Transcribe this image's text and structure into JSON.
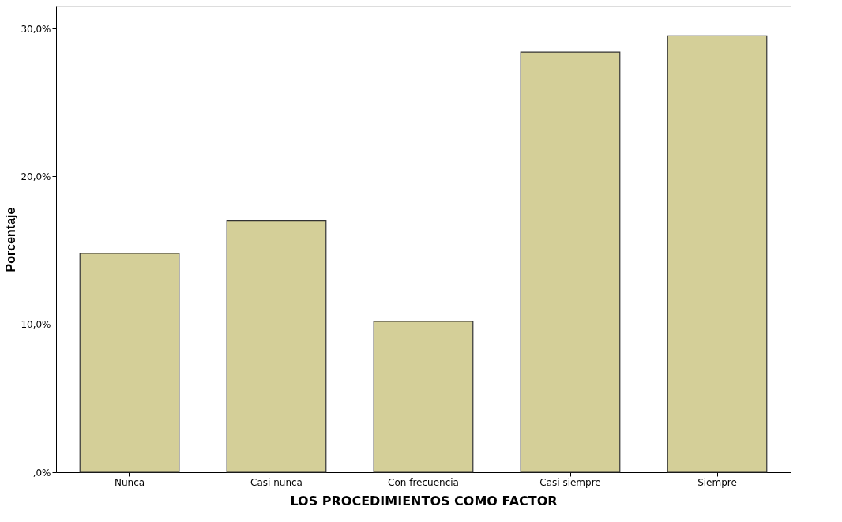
{
  "chart_data": {
    "type": "bar",
    "xlabel": "LOS PROCEDIMIENTOS COMO FACTOR",
    "ylabel": "Porcentaje",
    "categories": [
      "Nunca",
      "Casi nunca",
      "Con frecuencia",
      "Casi siempre",
      "Siempre"
    ],
    "values": [
      14.8,
      17.0,
      10.2,
      28.4,
      29.5
    ],
    "color": "#d4cf98",
    "ylim": [
      0,
      31.5
    ],
    "yticks": [
      {
        "value": 0,
        "label": ",0%"
      },
      {
        "value": 10,
        "label": "10,0%"
      },
      {
        "value": 20,
        "label": "20,0%"
      },
      {
        "value": 30,
        "label": "30,0%"
      }
    ],
    "grid": false
  }
}
